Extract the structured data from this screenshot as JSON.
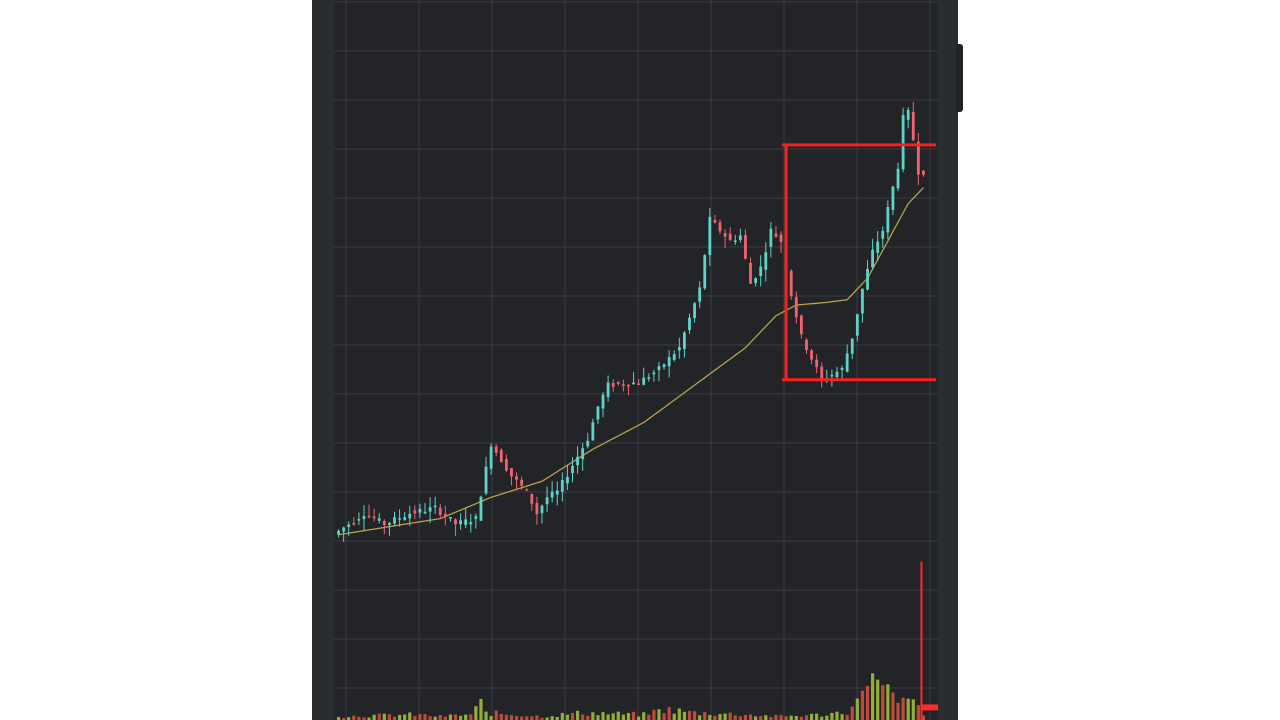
{
  "chart_data": {
    "type": "candlestick",
    "title": "",
    "xlabel": "",
    "ylabel": "",
    "ylim": [
      0,
      100
    ],
    "volume_ylim": [
      0,
      100
    ],
    "grid": true,
    "colors": {
      "up": "#5fd3c6",
      "down": "#f0646e",
      "moving_average": "#b9a04a",
      "range_box": "#ff1e1e",
      "volume_up": "#9fbf3a",
      "volume_down": "#d0503c",
      "volume_highlight": "#ff2a2a",
      "background": "#222428",
      "grid": "#3a3d42"
    },
    "range_box": {
      "label": "",
      "upper": 74,
      "lower": 30,
      "start_index": 88
    },
    "volume_marker_level": 7,
    "series": [
      {
        "name": "",
        "type": "candlestick",
        "anchors": [
          [
            0,
            1
          ],
          [
            6,
            5
          ],
          [
            10,
            3
          ],
          [
            15,
            5
          ],
          [
            20,
            6
          ],
          [
            24,
            3
          ],
          [
            28,
            4
          ],
          [
            31,
            18
          ],
          [
            35,
            12
          ],
          [
            38,
            9
          ],
          [
            40,
            5
          ],
          [
            42,
            8
          ],
          [
            44,
            9
          ],
          [
            50,
            19
          ],
          [
            52,
            25
          ],
          [
            54,
            29
          ],
          [
            60,
            29.5
          ],
          [
            64,
            32
          ],
          [
            68,
            36
          ],
          [
            72,
            47
          ],
          [
            74,
            60
          ],
          [
            78,
            56
          ],
          [
            80,
            57
          ],
          [
            82,
            48
          ],
          [
            84,
            51
          ],
          [
            86,
            58
          ],
          [
            88,
            56
          ],
          [
            90,
            46
          ],
          [
            92,
            38
          ],
          [
            96,
            30
          ],
          [
            100,
            32
          ],
          [
            102,
            38
          ],
          [
            104,
            47
          ],
          [
            106,
            54
          ],
          [
            108,
            58
          ],
          [
            110,
            66
          ],
          [
            111,
            70
          ],
          [
            112,
            79
          ],
          [
            113,
            80
          ],
          [
            114,
            75
          ],
          [
            115,
            69
          ]
        ]
      },
      {
        "name": "",
        "type": "line",
        "anchors": [
          [
            0,
            1
          ],
          [
            20,
            4
          ],
          [
            30,
            8
          ],
          [
            40,
            11
          ],
          [
            50,
            17
          ],
          [
            60,
            22
          ],
          [
            70,
            29
          ],
          [
            80,
            36
          ],
          [
            86,
            42
          ],
          [
            90,
            44
          ],
          [
            96,
            44.5
          ],
          [
            100,
            45
          ],
          [
            104,
            49
          ],
          [
            108,
            56
          ],
          [
            112,
            63
          ],
          [
            115,
            66
          ]
        ]
      }
    ],
    "volume": {
      "anchors": [
        [
          0,
          2
        ],
        [
          15,
          3
        ],
        [
          20,
          2
        ],
        [
          26,
          3
        ],
        [
          28,
          9
        ],
        [
          29,
          4
        ],
        [
          40,
          2
        ],
        [
          48,
          4
        ],
        [
          60,
          3
        ],
        [
          64,
          6
        ],
        [
          70,
          4
        ],
        [
          80,
          3
        ],
        [
          86,
          2
        ],
        [
          96,
          3
        ],
        [
          100,
          5
        ],
        [
          102,
          9
        ],
        [
          103,
          20
        ],
        [
          104,
          28
        ],
        [
          106,
          18
        ],
        [
          108,
          15
        ],
        [
          110,
          9
        ],
        [
          112,
          10
        ],
        [
          113,
          18
        ],
        [
          114,
          6
        ],
        [
          115,
          2
        ]
      ]
    }
  }
}
